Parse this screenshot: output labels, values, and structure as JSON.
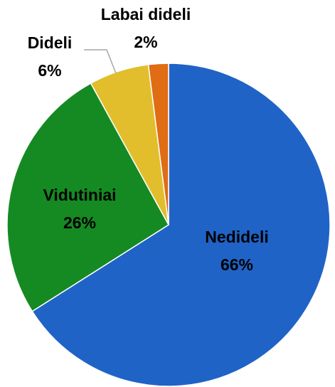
{
  "chart_data": {
    "type": "pie",
    "categories": [
      "Nedideli",
      "Vidutiniai",
      "Dideli",
      "Labai dideli"
    ],
    "values": [
      66,
      26,
      6,
      2
    ],
    "value_labels": [
      "66%",
      "26%",
      "6%",
      "2%"
    ],
    "colors": [
      "#1f63c6",
      "#158a22",
      "#e2be2c",
      "#e06c14"
    ]
  }
}
